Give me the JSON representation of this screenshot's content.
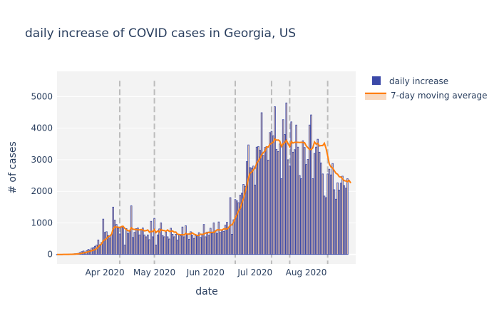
{
  "chart_data": {
    "type": "bar",
    "title": "daily increase of COVID cases in Georgia, US",
    "xlabel": "date",
    "ylabel": "# of cases",
    "x_range": [
      "2020-03-03",
      "2020-08-31"
    ],
    "ylim": [
      -300,
      5800
    ],
    "yticks": [
      0,
      1000,
      2000,
      3000,
      4000,
      5000
    ],
    "xticks": [
      {
        "date": "2020-04-01",
        "label": "Apr 2020"
      },
      {
        "date": "2020-05-01",
        "label": "May 2020"
      },
      {
        "date": "2020-06-01",
        "label": "Jun 2020"
      },
      {
        "date": "2020-07-01",
        "label": "Jul 2020"
      },
      {
        "date": "2020-08-01",
        "label": "Aug 2020"
      }
    ],
    "reference_lines": [
      "2020-04-10",
      "2020-05-01",
      "2020-06-19",
      "2020-07-11",
      "2020-07-22",
      "2020-08-14"
    ],
    "legend_position": "top-right",
    "grid": true,
    "colors": {
      "bars": "#3b49a8",
      "bar_fill": "#e8c4a8",
      "average": "#ff7f0e",
      "ref_line": "#bcbcbc",
      "plot_bg": "#f3f3f3"
    },
    "series": [
      {
        "name": "daily increase",
        "x_start": "2020-03-03",
        "values": [
          0,
          0,
          0,
          0,
          5,
          3,
          8,
          10,
          5,
          15,
          20,
          25,
          30,
          40,
          60,
          90,
          110,
          80,
          120,
          160,
          140,
          200,
          220,
          260,
          300,
          460,
          310,
          380,
          1120,
          700,
          720,
          600,
          530,
          640,
          1500,
          1090,
          950,
          830,
          650,
          860,
          860,
          300,
          820,
          660,
          760,
          1540,
          540,
          700,
          820,
          840,
          620,
          780,
          840,
          620,
          560,
          620,
          470,
          1050,
          560,
          1140,
          300,
          620,
          810,
          1000,
          600,
          560,
          710,
          560,
          490,
          830,
          640,
          560,
          640,
          460,
          620,
          590,
          870,
          560,
          910,
          640,
          480,
          720,
          610,
          510,
          600,
          610,
          690,
          540,
          640,
          950,
          560,
          710,
          610,
          830,
          670,
          1000,
          750,
          660,
          1030,
          700,
          780,
          730,
          930,
          1020,
          870,
          1800,
          640,
          1100,
          1740,
          1700,
          1640,
          1880,
          1940,
          2220,
          2160,
          2940,
          3470,
          2750,
          2740,
          2800,
          2200,
          3400,
          3420,
          3300,
          4490,
          3140,
          3390,
          3420,
          2990,
          3860,
          3900,
          3760,
          4680,
          3330,
          3260,
          3500,
          2400,
          4270,
          3800,
          4800,
          3000,
          2800,
          4200,
          3240,
          3320,
          4100,
          3400,
          2500,
          2400,
          3600,
          3390,
          2850,
          3010,
          4100,
          4420,
          2400,
          3200,
          3400,
          3650,
          3240,
          2900,
          2550,
          1850,
          1800,
          2550,
          2700,
          2520,
          2880,
          2050,
          1750,
          2270,
          2040,
          2260,
          2480,
          2180,
          2100,
          2400
        ]
      },
      {
        "name": "7-day moving average",
        "x_start": "2020-03-03",
        "values": [
          0,
          0,
          0,
          0,
          1,
          1,
          2,
          3,
          4,
          6,
          9,
          12,
          15,
          20,
          26,
          37,
          49,
          59,
          73,
          88,
          103,
          118,
          135,
          156,
          185,
          240,
          294,
          339,
          432,
          466,
          505,
          565,
          586,
          633,
          807,
          880,
          864,
          867,
          845,
          882,
          895,
          830,
          785,
          756,
          742,
          847,
          800,
          793,
          794,
          778,
          780,
          793,
          774,
          747,
          755,
          776,
          706,
          730,
          723,
          788,
          694,
          746,
          712,
          788,
          761,
          757,
          734,
          777,
          734,
          730,
          745,
          706,
          711,
          642,
          632,
          621,
          630,
          620,
          669,
          639,
          650,
          652,
          684,
          644,
          626,
          599,
          607,
          642,
          636,
          647,
          676,
          677,
          703,
          688,
          703,
          694,
          741,
          781,
          780,
          777,
          772,
          810,
          809,
          805,
          847,
          928,
          938,
          1031,
          1157,
          1256,
          1381,
          1455,
          1624,
          1770,
          1979,
          2180,
          2418,
          2578,
          2608,
          2687,
          2730,
          2889,
          2967,
          3049,
          3157,
          3227,
          3269,
          3404,
          3402,
          3489,
          3523,
          3559,
          3659,
          3618,
          3628,
          3591,
          3420,
          3504,
          3543,
          3616,
          3512,
          3415,
          3576,
          3529,
          3551,
          3551,
          3551,
          3547,
          3551,
          3547,
          3541,
          3440,
          3381,
          3328,
          3324,
          3375,
          3565,
          3495,
          3523,
          3437,
          3450,
          3449,
          3523,
          3364,
          3126,
          2864,
          2771,
          2738,
          2654,
          2573,
          2542,
          2463,
          2454,
          2395,
          2338,
          2327,
          2305,
          2344,
          2263
        ]
      }
    ]
  }
}
